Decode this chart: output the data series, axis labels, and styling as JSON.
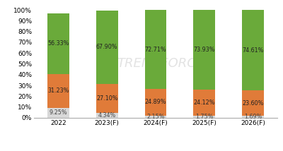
{
  "categories": [
    "2022",
    "2023(F)",
    "2024(F)",
    "2025(F)",
    "2026(F)"
  ],
  "series": {
    "166": [
      9.25,
      4.34,
      2.15,
      1.75,
      1.69
    ],
    "182": [
      31.23,
      27.1,
      24.89,
      24.12,
      23.6
    ],
    "210": [
      56.33,
      67.9,
      72.71,
      73.93,
      74.61
    ]
  },
  "colors": {
    "166": "#d8d8d8",
    "182": "#e07b39",
    "210": "#6aaa3a"
  },
  "background_color": "#ffffff",
  "bar_width": 0.45,
  "label_fontsize": 5.8,
  "legend_fontsize": 5.8,
  "tick_fontsize": 6.5,
  "watermark_text": "TRENDFORCE",
  "watermark_icon": "7"
}
